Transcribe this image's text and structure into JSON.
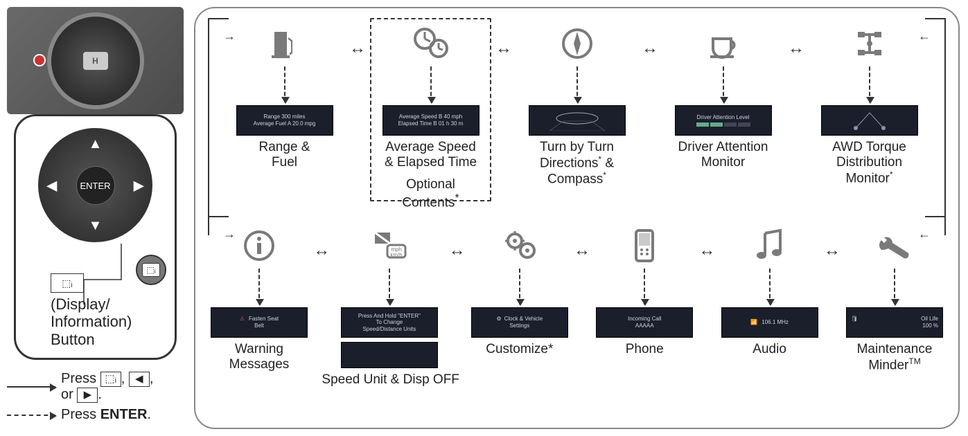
{
  "left": {
    "dpad_center": "ENTER",
    "callout_label_l1": "(Display/",
    "callout_label_l2": "Information)",
    "callout_label_l3": "Button"
  },
  "legend": {
    "solid_l1": "Press ",
    "solid_keys": [
      "⬚ᵢ",
      "◀",
      "▶"
    ],
    "solid_mid": ", ",
    "solid_or": "or ",
    "solid_end": ".",
    "dash": "Press ",
    "dash_bold": "ENTER",
    "dash_end": "."
  },
  "row1": [
    {
      "icon": "fuel",
      "screen_lines": [
        "Range  300 miles",
        "Average Fuel A  20.0 mpg"
      ],
      "label": "Range &\nFuel"
    },
    {
      "icon": "speedclock",
      "screen_lines": [
        "Average Speed B  40 mph",
        "Elapsed Time  B  01 h 30 m"
      ],
      "label": "Average Speed\n& Elapsed Time",
      "sublabel": "Optional\nContents*",
      "dashed": true
    },
    {
      "icon": "compass",
      "screen_lines": [
        ""
      ],
      "label": "Turn by Turn\nDirections* &\nCompass*"
    },
    {
      "icon": "coffee",
      "screen_lines": [
        "Driver Attention Level"
      ],
      "label": "Driver Attention\nMonitor"
    },
    {
      "icon": "awd",
      "screen_lines": [
        ""
      ],
      "label": "AWD Torque\nDistribution\nMonitor*"
    }
  ],
  "row2": [
    {
      "icon": "info",
      "screen_lines": [
        "Fasten Seat",
        "Belt"
      ],
      "label": "Warning\nMessages"
    },
    {
      "icon": "speedunit",
      "screen_lines": [
        "Press And Hold \"ENTER\"",
        "To Change",
        "Speed/Distance Units"
      ],
      "second_screen": true,
      "label": "Speed Unit & Disp OFF"
    },
    {
      "icon": "gears",
      "screen_lines": [
        "Clock & Vehicle",
        "Settings"
      ],
      "label": "Customize*"
    },
    {
      "icon": "phone",
      "screen_lines": [
        "Incoming Call",
        "AAAAA"
      ],
      "label": "Phone"
    },
    {
      "icon": "music",
      "screen_lines": [
        "106.1 MHz"
      ],
      "label": "Audio"
    },
    {
      "icon": "wrench",
      "screen_lines": [
        "Oil Life",
        "100 %"
      ],
      "label": "Maintenance\nMinder™"
    }
  ],
  "colors": {
    "icon": "#7a7a7a",
    "screen_bg": "#1a1f2b",
    "border": "#333333"
  }
}
